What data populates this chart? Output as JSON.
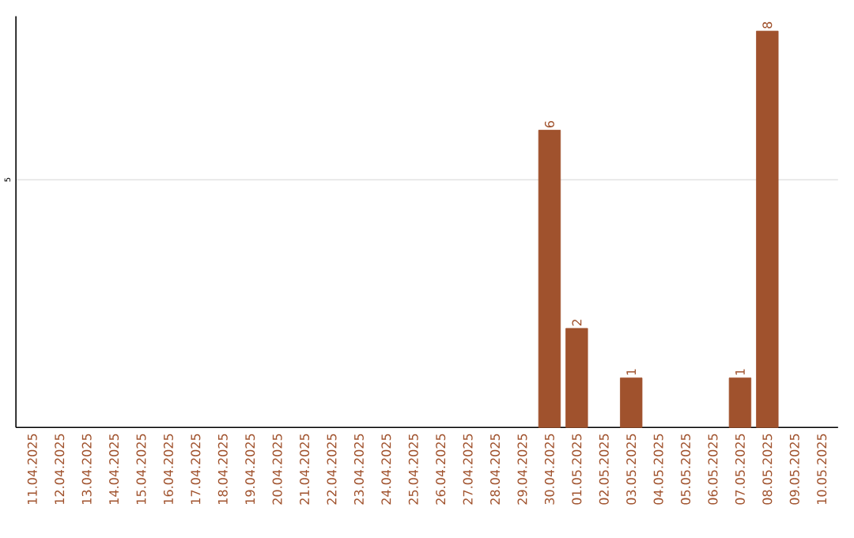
{
  "chart_data": {
    "type": "bar",
    "ylim": [
      0,
      8.3
    ],
    "yticks": [
      5
    ],
    "grid": "y",
    "categories": [
      "11.04.2025",
      "12.04.2025",
      "13.04.2025",
      "14.04.2025",
      "15.04.2025",
      "16.04.2025",
      "17.04.2025",
      "18.04.2025",
      "19.04.2025",
      "20.04.2025",
      "21.04.2025",
      "22.04.2025",
      "23.04.2025",
      "24.04.2025",
      "25.04.2025",
      "26.04.2025",
      "27.04.2025",
      "28.04.2025",
      "29.04.2025",
      "30.04.2025",
      "01.05.2025",
      "02.05.2025",
      "03.05.2025",
      "04.05.2025",
      "05.05.2025",
      "06.05.2025",
      "07.05.2025",
      "08.05.2025",
      "09.05.2025",
      "10.05.2025"
    ],
    "values": [
      null,
      null,
      null,
      null,
      null,
      null,
      null,
      null,
      null,
      null,
      null,
      null,
      null,
      null,
      null,
      null,
      null,
      null,
      null,
      6,
      2,
      null,
      1,
      null,
      null,
      null,
      1,
      8,
      null,
      null
    ],
    "data_labels": true,
    "color": "#a0522d"
  }
}
